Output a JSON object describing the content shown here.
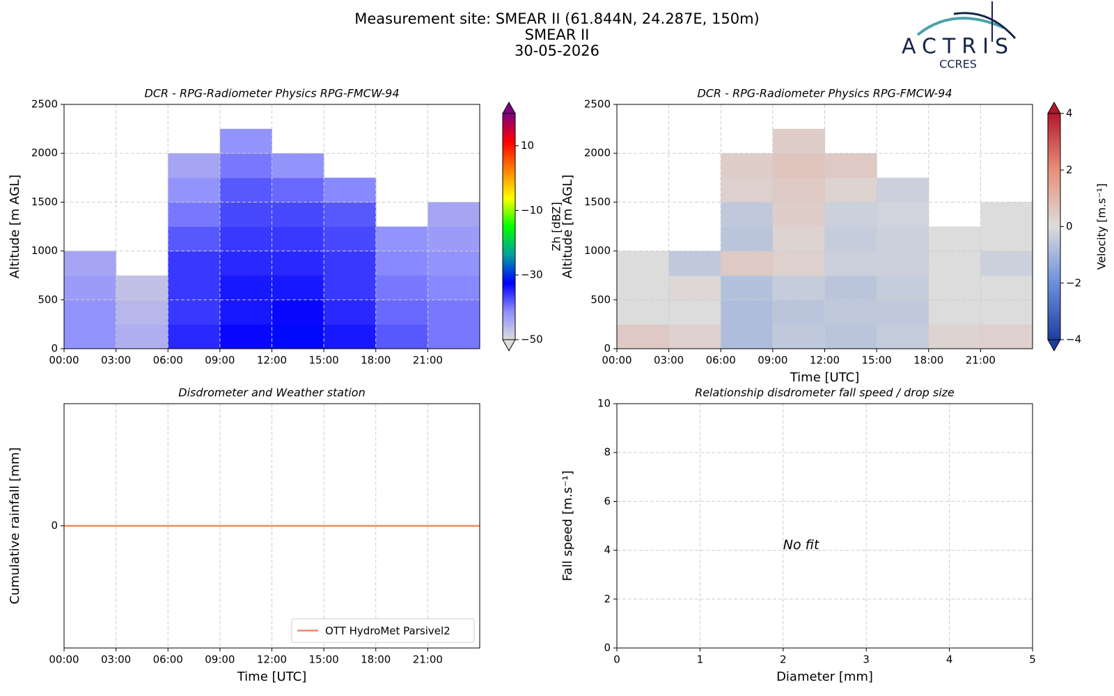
{
  "header": {
    "title_lines": [
      "Measurement site: SMEAR II (61.844N, 24.287E, 150m)",
      "SMEAR II",
      "30-05-2026"
    ],
    "logo": {
      "name": "ACTRIS",
      "sub": "CCRES"
    }
  },
  "chart_data": [
    {
      "type": "heatmap",
      "title": "DCR - RPG-Radiometer Physics RPG-FMCW-94",
      "ylabel": "Altitude [m AGL]",
      "xlim": [
        0,
        24
      ],
      "xticks": [
        {
          "value": 0,
          "label": "00:00"
        },
        {
          "value": 3,
          "label": "03:00"
        },
        {
          "value": 6,
          "label": "06:00"
        },
        {
          "value": 9,
          "label": "09:00"
        },
        {
          "value": 12,
          "label": "12:00"
        },
        {
          "value": 15,
          "label": "15:00"
        },
        {
          "value": 18,
          "label": "18:00"
        },
        {
          "value": 21,
          "label": "21:00"
        }
      ],
      "ylim": [
        0,
        2500
      ],
      "yticks": [
        0,
        500,
        1000,
        1500,
        2000,
        2500
      ],
      "grid": true,
      "xbins": [
        0,
        3,
        6,
        9,
        12,
        15,
        18,
        21,
        24
      ],
      "ybins": [
        0,
        250,
        500,
        750,
        1000,
        1250,
        1500,
        1750,
        2000,
        2250,
        2500
      ],
      "values": [
        [
          -42,
          -45,
          -35,
          -33,
          -32,
          -34,
          -38,
          -40
        ],
        [
          -42,
          -46,
          -36,
          -34,
          -33,
          -35,
          -39,
          -40
        ],
        [
          -43,
          -47,
          -36,
          -34,
          -34,
          -36,
          -40,
          -41
        ],
        [
          -44,
          null,
          -36,
          -35,
          -35,
          -36,
          -41,
          -42
        ],
        [
          null,
          null,
          -38,
          -36,
          -36,
          -37,
          -42,
          -43
        ],
        [
          null,
          null,
          -40,
          -37,
          -37,
          -38,
          null,
          -44
        ],
        [
          null,
          null,
          -42,
          -38,
          -39,
          -41,
          null,
          null
        ],
        [
          null,
          null,
          -44,
          -40,
          -42,
          null,
          null,
          null
        ],
        [
          null,
          null,
          null,
          -42,
          null,
          null,
          null,
          null
        ],
        [
          null,
          null,
          null,
          null,
          null,
          null,
          null,
          null
        ]
      ],
      "colorbar": {
        "label": "Zh [dBZ]",
        "lim": [
          -50,
          20
        ],
        "ticks": [
          {
            "value": -50,
            "label": "−50"
          },
          {
            "value": -30,
            "label": "−30"
          },
          {
            "value": -10,
            "label": "−10"
          },
          10
        ],
        "colors": [
          "#dcdcdc",
          "#8c8cff",
          "#0000ff",
          "#00a0a0",
          "#00ff00",
          "#ffff00",
          "#ff8000",
          "#ff0000",
          "#800080"
        ]
      }
    },
    {
      "type": "heatmap",
      "title": "DCR - RPG-Radiometer Physics RPG-FMCW-94",
      "ylabel": "Altitude [m AGL]",
      "xlabel": "Time [UTC]",
      "xlim": [
        0,
        24
      ],
      "xticks": [
        {
          "value": 0,
          "label": "00:00"
        },
        {
          "value": 3,
          "label": "03:00"
        },
        {
          "value": 6,
          "label": "06:00"
        },
        {
          "value": 9,
          "label": "09:00"
        },
        {
          "value": 12,
          "label": "12:00"
        },
        {
          "value": 15,
          "label": "15:00"
        },
        {
          "value": 18,
          "label": "18:00"
        },
        {
          "value": 21,
          "label": "21:00"
        }
      ],
      "ylim": [
        0,
        2500
      ],
      "yticks": [
        0,
        500,
        1000,
        1500,
        2000,
        2500
      ],
      "grid": true,
      "xbins": [
        0,
        3,
        6,
        9,
        12,
        15,
        18,
        21,
        24
      ],
      "ybins": [
        0,
        250,
        500,
        750,
        1000,
        1250,
        1500,
        1750,
        2000,
        2250,
        2500
      ],
      "values": [
        [
          0.5,
          0.3,
          -0.8,
          -0.5,
          -0.6,
          -0.4,
          0.2,
          0.3
        ],
        [
          0,
          0,
          -0.8,
          -0.6,
          -0.5,
          -0.5,
          0,
          0
        ],
        [
          0,
          0.1,
          -0.7,
          -0.4,
          -0.6,
          -0.4,
          0,
          0
        ],
        [
          0,
          -0.5,
          0.5,
          0.3,
          -0.3,
          -0.3,
          0,
          -0.3
        ],
        [
          null,
          null,
          -0.6,
          0.2,
          -0.4,
          -0.3,
          0,
          0
        ],
        [
          null,
          null,
          -0.5,
          0.4,
          -0.3,
          -0.2,
          null,
          0
        ],
        [
          null,
          null,
          0.3,
          0.5,
          0.2,
          -0.3,
          null,
          null
        ],
        [
          null,
          null,
          0.4,
          0.6,
          0.5,
          null,
          null,
          null
        ],
        [
          null,
          null,
          null,
          0.4,
          null,
          null,
          null,
          null
        ],
        [
          null,
          null,
          null,
          null,
          null,
          null,
          null,
          null
        ]
      ],
      "colorbar": {
        "label": "Velocity [m.s⁻¹]",
        "lim": [
          -4,
          4
        ],
        "ticks": [
          {
            "value": -4,
            "label": "−4"
          },
          {
            "value": -2,
            "label": "−2"
          },
          0,
          2,
          4
        ],
        "colors": [
          "#1f3fa0",
          "#6b8fdc",
          "#dcdcdc",
          "#e8907a",
          "#b2182b"
        ]
      }
    },
    {
      "type": "line",
      "title": "Disdrometer and Weather station",
      "ylabel": "Cumulative rainfall [mm]",
      "xlabel": "Time [UTC]",
      "xlim": [
        0,
        24
      ],
      "xticks": [
        {
          "value": 0,
          "label": "00:00"
        },
        {
          "value": 3,
          "label": "03:00"
        },
        {
          "value": 6,
          "label": "06:00"
        },
        {
          "value": 9,
          "label": "09:00"
        },
        {
          "value": 12,
          "label": "12:00"
        },
        {
          "value": 15,
          "label": "15:00"
        },
        {
          "value": 18,
          "label": "18:00"
        },
        {
          "value": 21,
          "label": "21:00"
        }
      ],
      "ylim": [
        -0.055,
        0.055
      ],
      "yticks": [
        0
      ],
      "grid": true,
      "legend": "lower right",
      "x": [
        0,
        24
      ],
      "series": [
        {
          "name": "OTT HydroMet Parsivel2",
          "color": "#f08a5d",
          "values": [
            0,
            0
          ]
        }
      ]
    },
    {
      "type": "scatter",
      "title": "Relationship disdrometer fall speed / drop size",
      "ylabel": "Fall speed [m.s⁻¹]",
      "xlabel": "Diameter [mm]",
      "xlim": [
        0,
        5
      ],
      "xticks": [
        0,
        1,
        2,
        3,
        4,
        5
      ],
      "ylim": [
        0,
        10
      ],
      "yticks": [
        0,
        2,
        4,
        6,
        8,
        10
      ],
      "grid": true,
      "annotation": "No fit"
    }
  ]
}
